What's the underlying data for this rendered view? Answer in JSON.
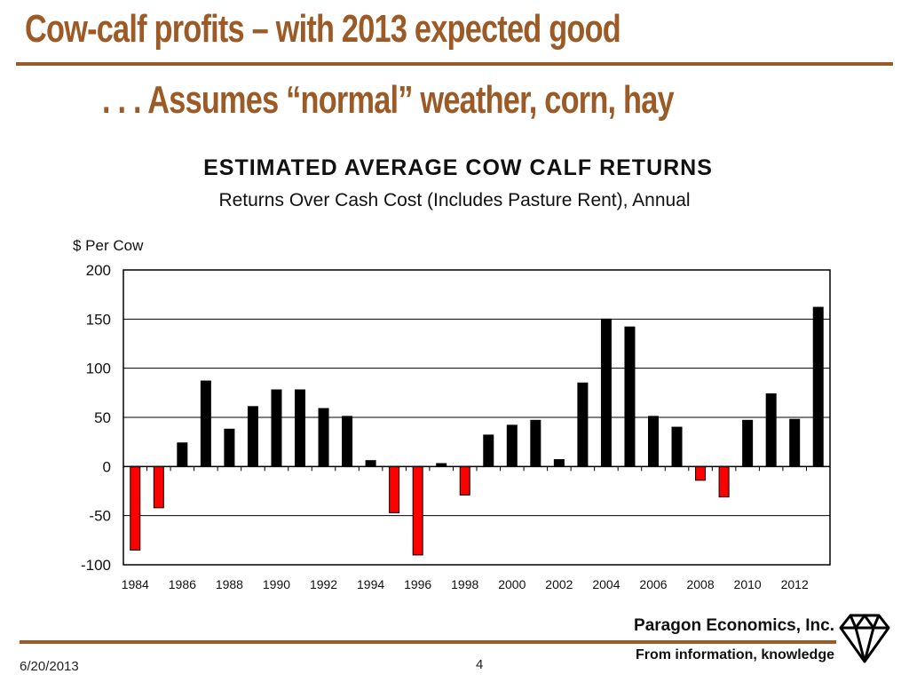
{
  "slide": {
    "title_line1": "Cow-calf profits – with 2013 expected  good",
    "title_line2": ". . . Assumes “normal”  weather, corn, hay",
    "footer_company": "Paragon Economics, Inc.",
    "footer_tagline": "From information, knowledge",
    "date": "6/20/2013",
    "page_number": "4",
    "title_color": "#9c5a26",
    "logo_icon": "diamond-icon"
  },
  "chart_data": {
    "type": "bar",
    "title": "ESTIMATED  AVERAGE  COW  CALF  RETURNS",
    "subtitle": "Returns Over Cash Cost (Includes Pasture Rent), Annual",
    "ylabel": "$ Per Cow",
    "xlabel": "",
    "ylim": [
      -100,
      200
    ],
    "yticks": [
      200,
      150,
      100,
      50,
      0,
      -50,
      -100
    ],
    "x_tick_labels": [
      "1984",
      "1986",
      "1988",
      "1990",
      "1992",
      "1994",
      "1996",
      "1998",
      "2000",
      "2002",
      "2004",
      "2006",
      "2008",
      "2010",
      "2012"
    ],
    "grid": true,
    "positive_color": "#000000",
    "negative_color": "#ff0000",
    "categories": [
      "1984",
      "1985",
      "1986",
      "1987",
      "1988",
      "1989",
      "1990",
      "1991",
      "1992",
      "1993",
      "1994",
      "1995",
      "1996",
      "1997",
      "1998",
      "1999",
      "2000",
      "2001",
      "2002",
      "2003",
      "2004",
      "2005",
      "2006",
      "2007",
      "2008",
      "2009",
      "2010",
      "2011",
      "2012",
      "2013"
    ],
    "values": [
      -85,
      -42,
      24,
      87,
      38,
      61,
      78,
      78,
      59,
      51,
      6,
      -47,
      -90,
      3,
      -29,
      32,
      42,
      47,
      7,
      85,
      150,
      142,
      51,
      40,
      -14,
      -31,
      47,
      74,
      48,
      162
    ]
  }
}
